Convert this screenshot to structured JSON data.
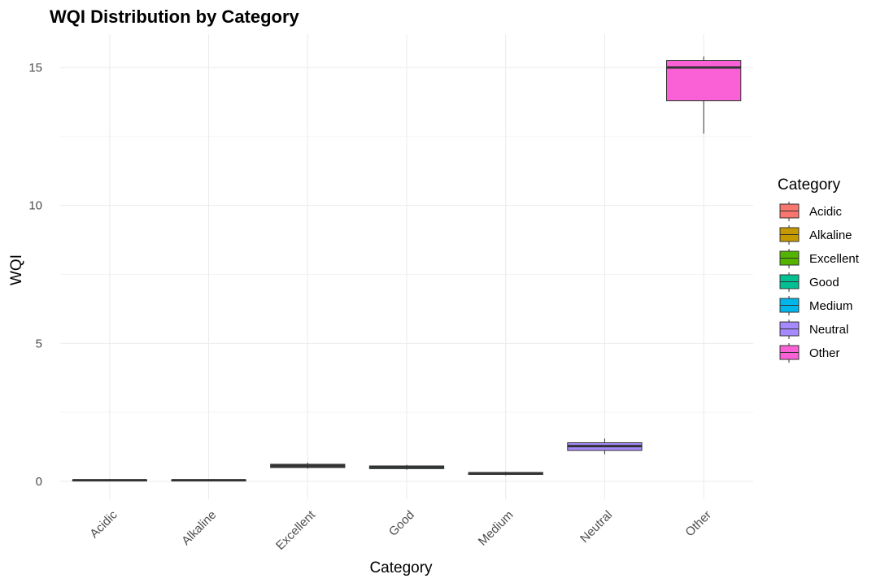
{
  "chart_data": {
    "type": "boxplot",
    "title": "WQI Distribution by Category",
    "xlabel": "Category",
    "ylabel": "WQI",
    "ylim": [
      -1.0,
      16.2
    ],
    "y_ticks": [
      0,
      5,
      10,
      15
    ],
    "grid": true,
    "legend": {
      "title": "Category",
      "position": "right"
    },
    "categories": [
      "Acidic",
      "Alkaline",
      "Excellent",
      "Good",
      "Medium",
      "Neutral",
      "Other"
    ],
    "colors": [
      "#F8766D",
      "#C49A00",
      "#53B400",
      "#00C094",
      "#00B6EB",
      "#A58AFF",
      "#FB61D7"
    ],
    "boxes": [
      {
        "category": "Acidic",
        "min": 0.02,
        "q1": 0.03,
        "median": 0.04,
        "q3": 0.05,
        "max": 0.06
      },
      {
        "category": "Alkaline",
        "min": 0.02,
        "q1": 0.03,
        "median": 0.04,
        "q3": 0.05,
        "max": 0.06
      },
      {
        "category": "Excellent",
        "min": 0.46,
        "q1": 0.5,
        "median": 0.56,
        "q3": 0.62,
        "max": 0.68
      },
      {
        "category": "Good",
        "min": 0.42,
        "q1": 0.46,
        "median": 0.52,
        "q3": 0.56,
        "max": 0.6
      },
      {
        "category": "Medium",
        "min": 0.22,
        "q1": 0.25,
        "median": 0.29,
        "q3": 0.32,
        "max": 0.35
      },
      {
        "category": "Neutral",
        "min": 0.98,
        "q1": 1.12,
        "median": 1.28,
        "q3": 1.4,
        "max": 1.55
      },
      {
        "category": "Other",
        "min": 12.6,
        "q1": 13.8,
        "median": 15.0,
        "q3": 15.25,
        "max": 15.4
      }
    ]
  }
}
